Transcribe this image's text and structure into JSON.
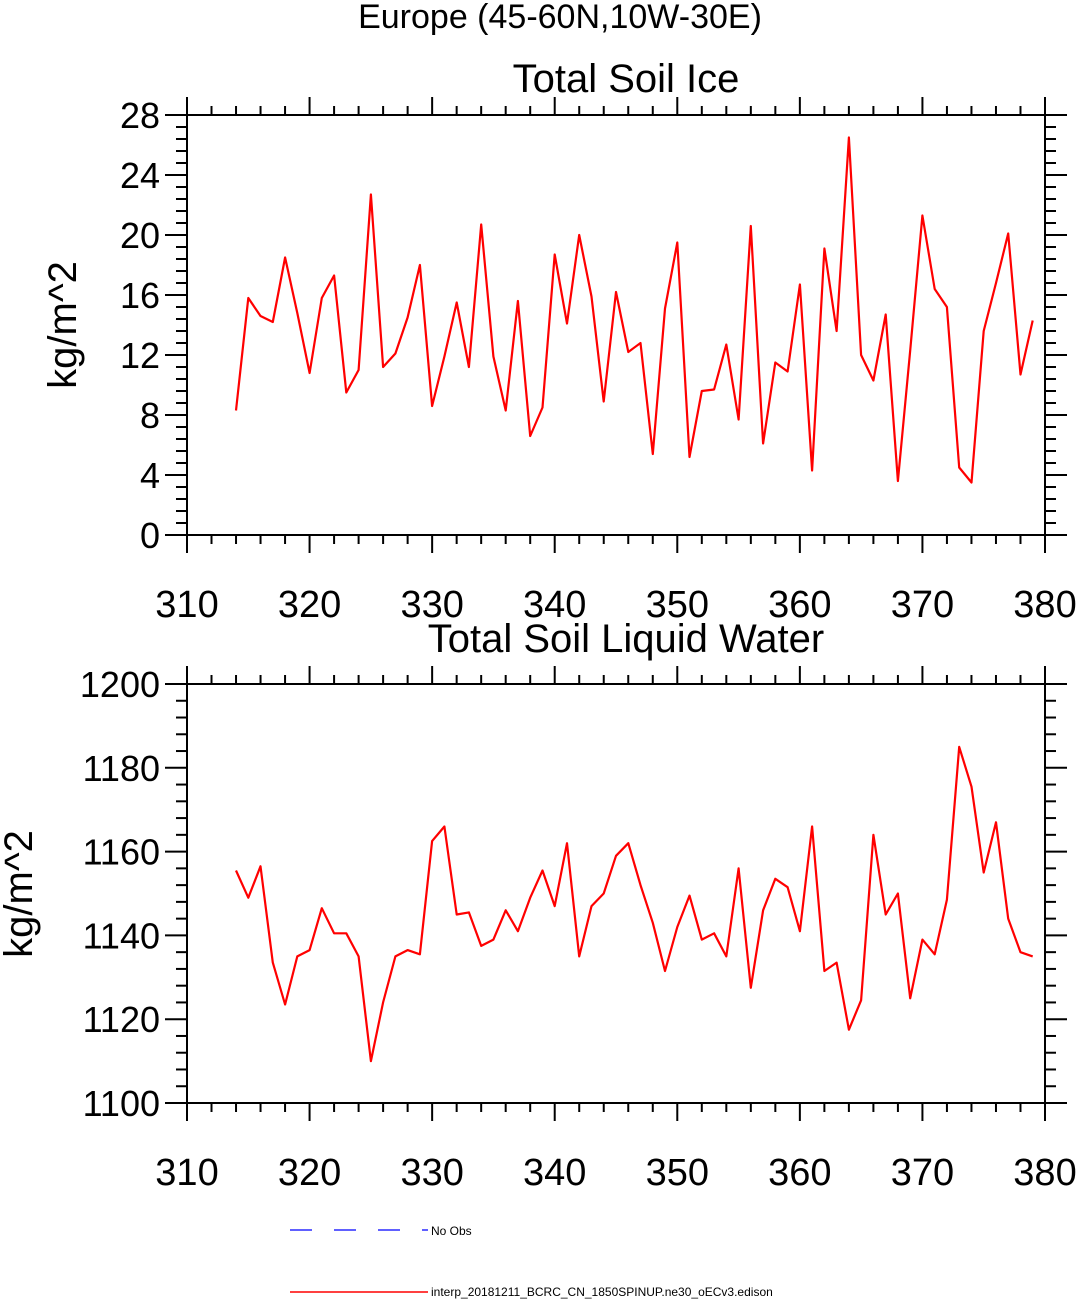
{
  "page_title": "Europe (45-60N,10W-30E)",
  "chart_data": [
    {
      "type": "line",
      "title": "Total Soil Ice",
      "xlabel": "",
      "ylabel": "kg/m^2",
      "xlim": [
        310,
        380
      ],
      "ylim": [
        0,
        28
      ],
      "xticks": [
        "310",
        "320",
        "330",
        "340",
        "350",
        "360",
        "370",
        "380"
      ],
      "yticks": [
        "0",
        "4",
        "8",
        "12",
        "16",
        "20",
        "24",
        "28"
      ],
      "grid": false,
      "series": [
        {
          "name": "interp_20181211_BCRC_CN_1850SPINUP.ne30_oECv3.edison",
          "color": "#ff0000",
          "x": [
            314,
            315,
            316,
            317,
            318,
            319,
            320,
            321,
            322,
            323,
            324,
            325,
            326,
            327,
            328,
            329,
            330,
            331,
            332,
            333,
            334,
            335,
            336,
            337,
            338,
            339,
            340,
            341,
            342,
            343,
            344,
            345,
            346,
            347,
            348,
            349,
            350,
            351,
            352,
            353,
            354,
            355,
            356,
            357,
            358,
            359,
            360,
            361,
            362,
            363,
            364,
            365,
            366,
            367,
            368,
            369,
            370,
            371,
            372,
            373,
            374,
            375,
            376,
            377,
            378,
            379
          ],
          "y": [
            8.3,
            15.8,
            14.6,
            14.2,
            18.5,
            14.8,
            10.8,
            15.8,
            17.3,
            9.5,
            11.0,
            22.7,
            11.2,
            12.1,
            14.5,
            18.0,
            8.6,
            11.9,
            15.5,
            11.2,
            20.7,
            11.9,
            8.3,
            15.6,
            6.6,
            8.5,
            18.7,
            14.1,
            20.0,
            15.9,
            8.9,
            16.2,
            12.2,
            12.8,
            5.4,
            15.1,
            19.5,
            5.2,
            9.6,
            9.7,
            12.7,
            7.7,
            20.6,
            6.1,
            11.5,
            10.9,
            16.7,
            4.3,
            19.1,
            13.6,
            26.5,
            12.0,
            10.3,
            14.7,
            3.6,
            12.3,
            21.3,
            16.4,
            15.2,
            4.5,
            3.5,
            13.6,
            16.8,
            20.1,
            10.7,
            14.3
          ]
        }
      ]
    },
    {
      "type": "line",
      "title": "Total Soil Liquid Water",
      "xlabel": "",
      "ylabel": "kg/m^2",
      "xlim": [
        310,
        380
      ],
      "ylim": [
        1100,
        1200
      ],
      "xticks": [
        "310",
        "320",
        "330",
        "340",
        "350",
        "360",
        "370",
        "380"
      ],
      "yticks": [
        "1100",
        "1120",
        "1140",
        "1160",
        "1180",
        "1200"
      ],
      "grid": false,
      "series": [
        {
          "name": "interp_20181211_BCRC_CN_1850SPINUP.ne30_oECv3.edison",
          "color": "#ff0000",
          "x": [
            314,
            315,
            316,
            317,
            318,
            319,
            320,
            321,
            322,
            323,
            324,
            325,
            326,
            327,
            328,
            329,
            330,
            331,
            332,
            333,
            334,
            335,
            336,
            337,
            338,
            339,
            340,
            341,
            342,
            343,
            344,
            345,
            346,
            347,
            348,
            349,
            350,
            351,
            352,
            353,
            354,
            355,
            356,
            357,
            358,
            359,
            360,
            361,
            362,
            363,
            364,
            365,
            366,
            367,
            368,
            369,
            370,
            371,
            372,
            373,
            374,
            375,
            376,
            377,
            378,
            379
          ],
          "y": [
            1155.5,
            1149,
            1156.5,
            1133.5,
            1123.5,
            1135,
            1136.5,
            1146.5,
            1140.5,
            1140.5,
            1135,
            1110,
            1124,
            1135,
            1136.5,
            1135.5,
            1162.5,
            1166,
            1145,
            1145.5,
            1137.5,
            1139,
            1146,
            1141,
            1149,
            1155.5,
            1147,
            1162,
            1135,
            1147,
            1150,
            1159,
            1162,
            1152,
            1143,
            1131.5,
            1142,
            1149.5,
            1139,
            1140.5,
            1135,
            1156,
            1127.5,
            1146,
            1153.5,
            1151.5,
            1141,
            1166,
            1131.5,
            1133.5,
            1117.5,
            1124.5,
            1164,
            1145,
            1150,
            1125,
            1139,
            1135.5,
            1148.5,
            1185,
            1175.5,
            1155,
            1167,
            1144,
            1136,
            1135
          ]
        }
      ]
    }
  ],
  "legend": {
    "placement": "bottom-center",
    "entries": [
      {
        "label": "No Obs",
        "color": "#0000ff",
        "style": "dashed"
      },
      {
        "label": "interp_20181211_BCRC_CN_1850SPINUP.ne30_oECv3.edison",
        "color": "#ff0000",
        "style": "solid"
      }
    ]
  }
}
